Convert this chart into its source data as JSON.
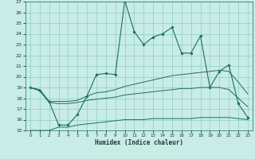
{
  "xlabel": "Humidex (Indice chaleur)",
  "xlim": [
    -0.5,
    23.5
  ],
  "ylim": [
    15,
    27
  ],
  "yticks": [
    15,
    16,
    17,
    18,
    19,
    20,
    21,
    22,
    23,
    24,
    25,
    26,
    27
  ],
  "xticks": [
    0,
    1,
    2,
    3,
    4,
    5,
    6,
    7,
    8,
    9,
    10,
    11,
    12,
    13,
    14,
    15,
    16,
    17,
    18,
    19,
    20,
    21,
    22,
    23
  ],
  "bg_color": "#c8ece6",
  "line_color": "#1e6e62",
  "main_line": [
    19.0,
    18.7,
    17.7,
    15.5,
    15.5,
    16.5,
    18.2,
    20.2,
    20.3,
    20.2,
    27.1,
    24.2,
    23.0,
    23.7,
    24.0,
    24.6,
    22.2,
    22.2,
    23.8,
    19.0,
    20.5,
    21.1,
    17.5,
    16.2
  ],
  "upper_line": [
    19.0,
    18.8,
    17.7,
    17.7,
    17.7,
    17.8,
    18.2,
    18.5,
    18.6,
    18.8,
    19.1,
    19.3,
    19.5,
    19.7,
    19.9,
    20.1,
    20.2,
    20.3,
    20.4,
    20.5,
    20.6,
    20.5,
    19.5,
    18.4
  ],
  "mid_line": [
    19.0,
    18.7,
    17.6,
    17.5,
    17.5,
    17.6,
    17.8,
    17.9,
    18.0,
    18.1,
    18.3,
    18.4,
    18.5,
    18.6,
    18.7,
    18.8,
    18.9,
    18.9,
    19.0,
    19.0,
    19.0,
    18.8,
    18.0,
    17.2
  ],
  "lower_line": [
    15.0,
    15.0,
    15.0,
    15.3,
    15.3,
    15.5,
    15.6,
    15.7,
    15.8,
    15.9,
    16.0,
    16.0,
    16.0,
    16.1,
    16.1,
    16.1,
    16.1,
    16.1,
    16.2,
    16.2,
    16.2,
    16.2,
    16.1,
    16.0
  ]
}
